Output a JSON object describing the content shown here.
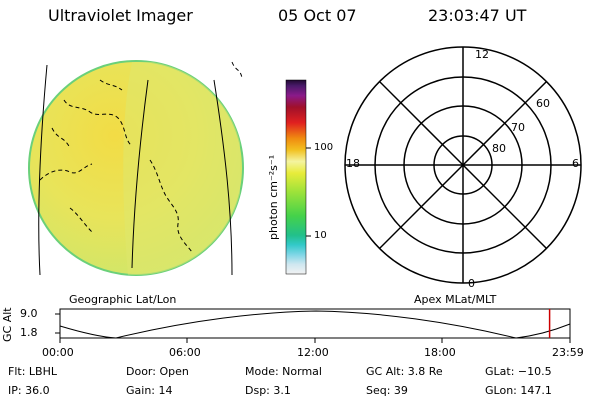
{
  "header": {
    "instrument": "Ultraviolet Imager",
    "date": "05 Oct 07",
    "time": "23:03:47 UT"
  },
  "left_panel": {
    "label": "Geographic Lat/Lon"
  },
  "colorbar": {
    "unit_label": "photon cm⁻²s⁻¹",
    "tick_100": "100",
    "tick_10": "10"
  },
  "polar_plot": {
    "label": "Apex MLat/MLT",
    "mlt_top": "12",
    "mlt_left": "18",
    "mlt_right": "6",
    "mlt_bottom": "0",
    "lat_60": "60",
    "lat_70": "70",
    "lat_80": "80"
  },
  "altitude_strip": {
    "ylabel": "GC Alt",
    "ymax": "9.0",
    "ymin": "1.8",
    "xticks": [
      "00:00",
      "06:00",
      "12:00",
      "18:00",
      "23:59"
    ],
    "current_fraction": 0.96,
    "marker_color": "#cc0000"
  },
  "info": {
    "flt": "Flt: LBHL",
    "ip": "IP: 36.0",
    "door": "Door: Open",
    "gain": "Gain: 14",
    "mode": "Mode: Normal",
    "dsp": "Dsp:    3.1",
    "gc_alt": "GC Alt: 3.8 Re",
    "seq": "Seq: 39",
    "glat": "GLat: −10.5",
    "glon": "GLon: 147.1"
  }
}
